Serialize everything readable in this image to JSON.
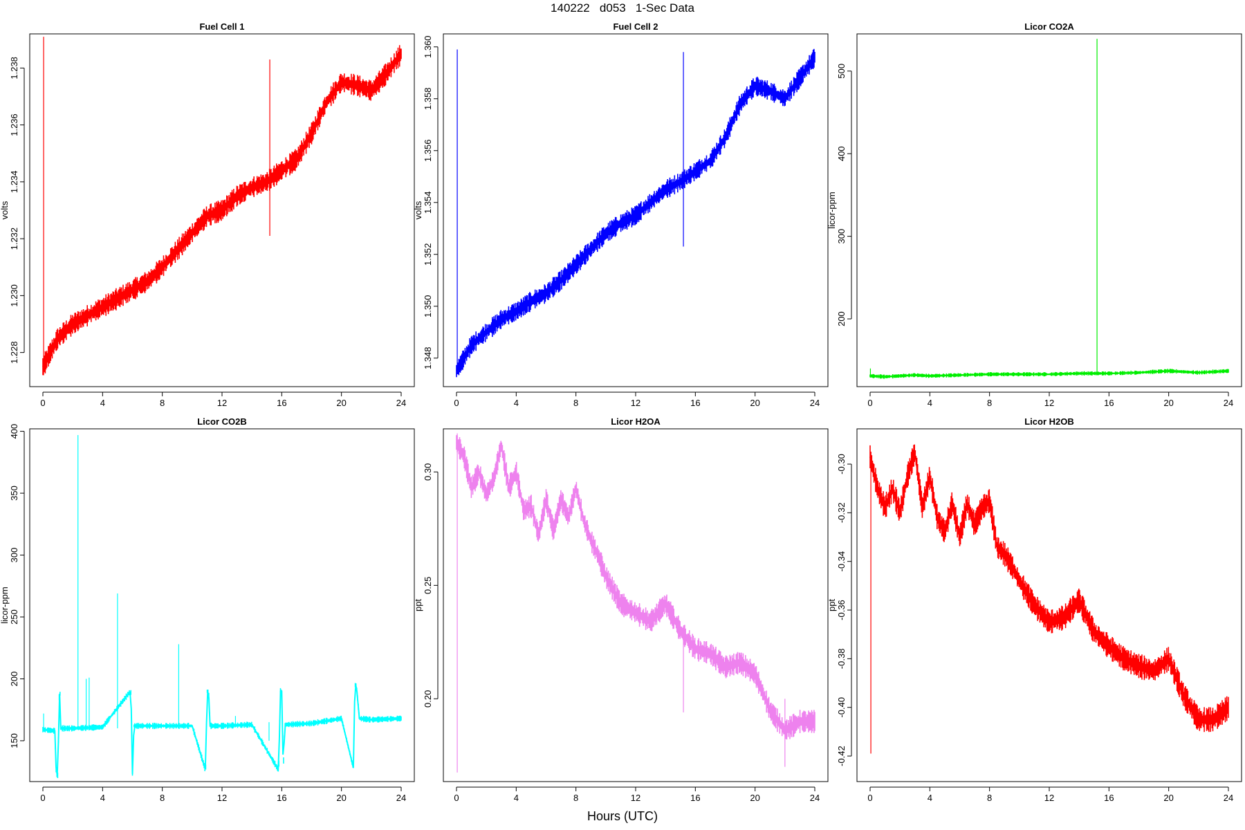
{
  "title": "140222   d053   1-Sec Data",
  "xlabel": "Hours (UTC)",
  "chart_data": [
    {
      "type": "line",
      "title": "Fuel Cell 1",
      "ylabel": "volts",
      "color": "#ff0000",
      "xlim": [
        0,
        24
      ],
      "xticks": [
        0,
        4,
        8,
        12,
        16,
        20,
        24
      ],
      "ylim": [
        1.2268,
        1.2392
      ],
      "yticks": [
        1.228,
        1.23,
        1.232,
        1.234,
        1.236,
        1.238
      ],
      "ytick_labels": [
        "1.228",
        "1.230",
        "1.232",
        "1.234",
        "1.236",
        "1.238"
      ],
      "x": [
        0,
        0.5,
        1,
        2,
        3,
        4,
        5,
        6,
        7,
        8,
        9,
        10,
        11,
        12,
        13,
        14,
        15,
        16,
        17,
        18,
        19,
        20,
        21,
        22,
        23,
        24
      ],
      "y": [
        1.2275,
        1.228,
        1.2285,
        1.229,
        1.2293,
        1.2296,
        1.2299,
        1.2302,
        1.2305,
        1.231,
        1.2316,
        1.2322,
        1.2328,
        1.233,
        1.2335,
        1.2338,
        1.234,
        1.2344,
        1.2348,
        1.2357,
        1.2368,
        1.2375,
        1.2374,
        1.2372,
        1.2378,
        1.2385
      ],
      "band": 0.0003,
      "spikes": [
        {
          "x": 0.05,
          "ymin": 1.2272,
          "ymax": 1.2391
        },
        {
          "x": 15.2,
          "ymin": 1.2321,
          "ymax": 1.2383
        }
      ]
    },
    {
      "type": "line",
      "title": "Fuel Cell 2",
      "ylabel": "volts",
      "color": "#0000ff",
      "xlim": [
        0,
        24
      ],
      "xticks": [
        0,
        4,
        8,
        12,
        16,
        20,
        24
      ],
      "ylim": [
        1.3469,
        1.3605
      ],
      "yticks": [
        1.348,
        1.35,
        1.352,
        1.354,
        1.356,
        1.358,
        1.36
      ],
      "ytick_labels": [
        "1.348",
        "1.350",
        "1.352",
        "1.354",
        "1.356",
        "1.358",
        "1.360"
      ],
      "x": [
        0,
        0.5,
        1,
        2,
        3,
        4,
        5,
        6,
        7,
        8,
        9,
        10,
        11,
        12,
        13,
        14,
        15,
        16,
        17,
        18,
        19,
        20,
        21,
        22,
        23,
        24
      ],
      "y": [
        1.3475,
        1.348,
        1.3485,
        1.349,
        1.3495,
        1.3498,
        1.3502,
        1.3505,
        1.351,
        1.3516,
        1.3522,
        1.3528,
        1.3532,
        1.3535,
        1.354,
        1.3545,
        1.3548,
        1.3552,
        1.3556,
        1.3565,
        1.3578,
        1.3585,
        1.3583,
        1.358,
        1.3588,
        1.3596
      ],
      "band": 0.0003,
      "spikes": [
        {
          "x": 0.05,
          "ymin": 1.3474,
          "ymax": 1.3599
        },
        {
          "x": 15.2,
          "ymin": 1.3523,
          "ymax": 1.3598
        }
      ]
    },
    {
      "type": "line",
      "title": "Licor CO2A",
      "ylabel": "licor-ppm",
      "color": "#00ee00",
      "xlim": [
        0,
        24
      ],
      "xticks": [
        0,
        4,
        8,
        12,
        16,
        20,
        24
      ],
      "ylim": [
        118,
        545
      ],
      "yticks": [
        200,
        300,
        400,
        500
      ],
      "ytick_labels": [
        "200",
        "300",
        "400",
        "500"
      ],
      "x": [
        0,
        1,
        2,
        3,
        4,
        6,
        8,
        10,
        12,
        14,
        15,
        16,
        18,
        20,
        22,
        24
      ],
      "y": [
        131,
        130,
        131,
        132,
        131,
        132,
        133,
        133,
        133,
        134,
        134,
        134,
        135,
        137,
        135,
        137
      ],
      "band": 2,
      "spikes": [
        {
          "x": 0.02,
          "ymin": 129,
          "ymax": 140
        },
        {
          "x": 15.2,
          "ymin": 134,
          "ymax": 539
        }
      ]
    },
    {
      "type": "line",
      "title": "Licor CO2B",
      "ylabel": "licor-ppm",
      "color": "#00ffff",
      "xlim": [
        0,
        24
      ],
      "xticks": [
        0,
        4,
        8,
        12,
        16,
        20,
        24
      ],
      "ylim": [
        117,
        402
      ],
      "yticks": [
        150,
        200,
        250,
        300,
        350,
        400
      ],
      "ytick_labels": [
        "150",
        "200",
        "250",
        "300",
        "350",
        "400"
      ],
      "x": [
        0,
        0.8,
        0.9,
        1.0,
        1.1,
        1.15,
        1.2,
        1.3,
        2,
        4,
        5.8,
        5.9,
        6.0,
        6.1,
        6.2,
        8,
        10,
        10.9,
        11.0,
        11.1,
        11.2,
        12,
        14,
        15.8,
        15.9,
        16.0,
        16.1,
        16.2,
        18,
        20,
        20.8,
        20.9,
        21.0,
        21.2,
        22,
        24
      ],
      "y": [
        159,
        158,
        122,
        122,
        188,
        188,
        160,
        160,
        160,
        161,
        189,
        189,
        123,
        162,
        162,
        162,
        162,
        126,
        190,
        190,
        162,
        162,
        163,
        126,
        190,
        190,
        126,
        163,
        164,
        168,
        128,
        195,
        195,
        168,
        167,
        168
      ],
      "band": 2,
      "spikes": [
        {
          "x": 0.05,
          "ymin": 158,
          "ymax": 172
        },
        {
          "x": 2.35,
          "ymin": 160,
          "ymax": 397
        },
        {
          "x": 2.9,
          "ymin": 160,
          "ymax": 200
        },
        {
          "x": 3.1,
          "ymin": 160,
          "ymax": 201
        },
        {
          "x": 5.0,
          "ymin": 160,
          "ymax": 269
        },
        {
          "x": 9.1,
          "ymin": 161,
          "ymax": 228
        },
        {
          "x": 12.9,
          "ymin": 162,
          "ymax": 170
        },
        {
          "x": 15.15,
          "ymin": 150,
          "ymax": 165
        }
      ]
    },
    {
      "type": "line",
      "title": "Licor H2OA",
      "ylabel": "ppt",
      "color": "#ee82ee",
      "xlim": [
        0,
        24
      ],
      "xticks": [
        0,
        4,
        8,
        12,
        16,
        20,
        24
      ],
      "ylim": [
        0.1635,
        0.319
      ],
      "yticks": [
        0.2,
        0.25,
        0.3
      ],
      "ytick_labels": [
        "0.20",
        "0.25",
        "0.30"
      ],
      "x": [
        0,
        0.5,
        1,
        1.5,
        2,
        2.5,
        3,
        3.5,
        4,
        4.5,
        5,
        5.5,
        6,
        6.5,
        7,
        7.5,
        8,
        8.5,
        9,
        9.5,
        10,
        11,
        12,
        13,
        14,
        15,
        16,
        17,
        18,
        19,
        20,
        21,
        22,
        23,
        24
      ],
      "y": [
        0.313,
        0.307,
        0.293,
        0.3,
        0.29,
        0.297,
        0.312,
        0.293,
        0.3,
        0.283,
        0.285,
        0.272,
        0.288,
        0.274,
        0.288,
        0.28,
        0.293,
        0.279,
        0.27,
        0.263,
        0.254,
        0.242,
        0.238,
        0.234,
        0.242,
        0.23,
        0.222,
        0.22,
        0.214,
        0.216,
        0.211,
        0.195,
        0.186,
        0.19,
        0.19
      ],
      "band": 0.004,
      "spikes": [
        {
          "x": 0.05,
          "ymin": 0.1675,
          "ymax": 0.317
        },
        {
          "x": 15.2,
          "ymin": 0.194,
          "ymax": 0.232
        },
        {
          "x": 22.0,
          "ymin": 0.17,
          "ymax": 0.2
        }
      ]
    },
    {
      "type": "line",
      "title": "Licor H2OB",
      "ylabel": "ppt",
      "color": "#ff0000",
      "xlim": [
        0,
        24
      ],
      "xticks": [
        0,
        4,
        8,
        12,
        16,
        20,
        24
      ],
      "ylim": [
        -0.4305,
        -0.2855
      ],
      "yticks": [
        -0.42,
        -0.4,
        -0.38,
        -0.36,
        -0.34,
        -0.32,
        -0.3
      ],
      "ytick_labels": [
        "-0.42",
        "-0.40",
        "-0.38",
        "-0.36",
        "-0.34",
        "-0.32",
        "-0.30"
      ],
      "x": [
        0,
        0.5,
        1,
        1.5,
        2,
        2.5,
        3,
        3.5,
        4,
        4.5,
        5,
        5.5,
        6,
        6.5,
        7,
        7.5,
        8,
        8.5,
        9,
        9.5,
        10,
        11,
        12,
        13,
        14,
        15,
        16,
        17,
        18,
        19,
        20,
        21,
        22,
        23,
        24
      ],
      "y": [
        -0.297,
        -0.31,
        -0.318,
        -0.31,
        -0.32,
        -0.305,
        -0.295,
        -0.318,
        -0.305,
        -0.322,
        -0.328,
        -0.316,
        -0.33,
        -0.316,
        -0.325,
        -0.318,
        -0.315,
        -0.334,
        -0.337,
        -0.342,
        -0.348,
        -0.358,
        -0.365,
        -0.363,
        -0.356,
        -0.369,
        -0.375,
        -0.38,
        -0.383,
        -0.385,
        -0.38,
        -0.395,
        -0.405,
        -0.405,
        -0.4
      ],
      "band": 0.004,
      "spikes": [
        {
          "x": 0.05,
          "ymin": -0.419,
          "ymax": -0.297
        }
      ]
    }
  ]
}
